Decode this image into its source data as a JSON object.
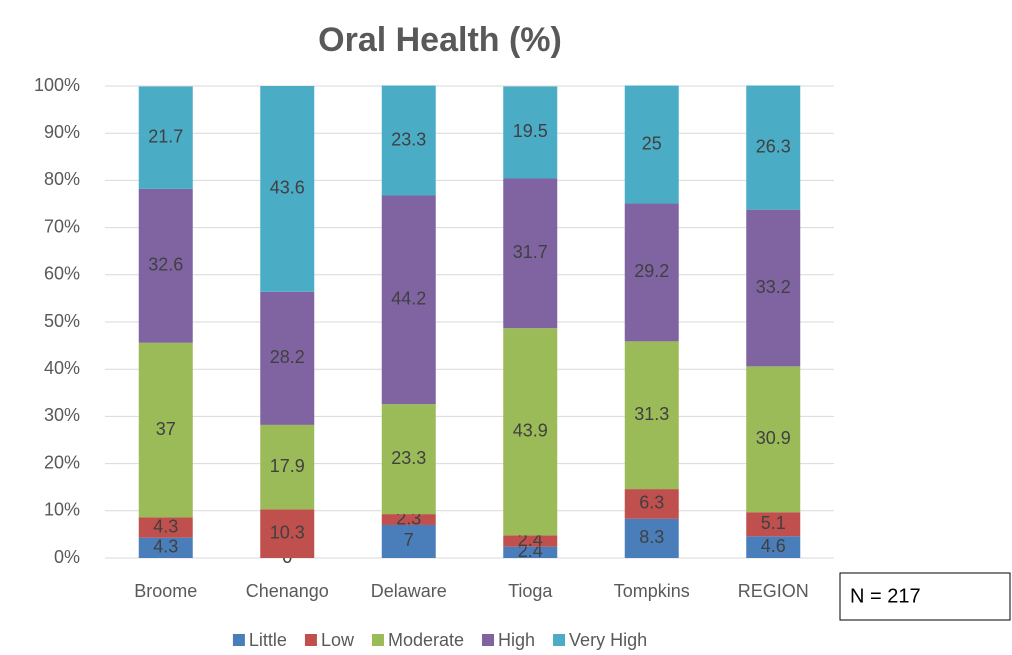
{
  "chart_data": {
    "type": "stacked_bar",
    "title": "Oral Health (%)",
    "categories": [
      "Broome",
      "Chenango",
      "Delaware",
      "Tioga",
      "Tompkins",
      "REGION"
    ],
    "series": [
      {
        "name": "Little",
        "color": "#4a7ebb",
        "values": [
          4.3,
          0,
          7,
          2.4,
          8.3,
          4.6
        ]
      },
      {
        "name": "Low",
        "color": "#c0504d",
        "values": [
          4.3,
          10.3,
          2.3,
          2.4,
          6.3,
          5.1
        ]
      },
      {
        "name": "Moderate",
        "color": "#9bbb59",
        "values": [
          37,
          17.9,
          23.3,
          43.9,
          31.3,
          30.9
        ]
      },
      {
        "name": "High",
        "color": "#8064a2",
        "values": [
          32.6,
          28.2,
          44.2,
          31.7,
          29.2,
          33.2
        ]
      },
      {
        "name": "Very High",
        "color": "#4bacc6",
        "values": [
          21.7,
          43.6,
          23.3,
          19.5,
          25,
          26.3
        ]
      }
    ],
    "ylim": [
      0,
      100
    ],
    "yticks": [
      {
        "value": 0,
        "label": "0%"
      },
      {
        "value": 10,
        "label": "10%"
      },
      {
        "value": 20,
        "label": "20%"
      },
      {
        "value": 30,
        "label": "30%"
      },
      {
        "value": 40,
        "label": "40%"
      },
      {
        "value": 50,
        "label": "50%"
      },
      {
        "value": 60,
        "label": "60%"
      },
      {
        "value": 70,
        "label": "70%"
      },
      {
        "value": 80,
        "label": "80%"
      },
      {
        "value": 90,
        "label": "90%"
      },
      {
        "value": 100,
        "label": "100%"
      }
    ],
    "grid": true,
    "legend": "bottom",
    "annotation": "N = 217"
  }
}
